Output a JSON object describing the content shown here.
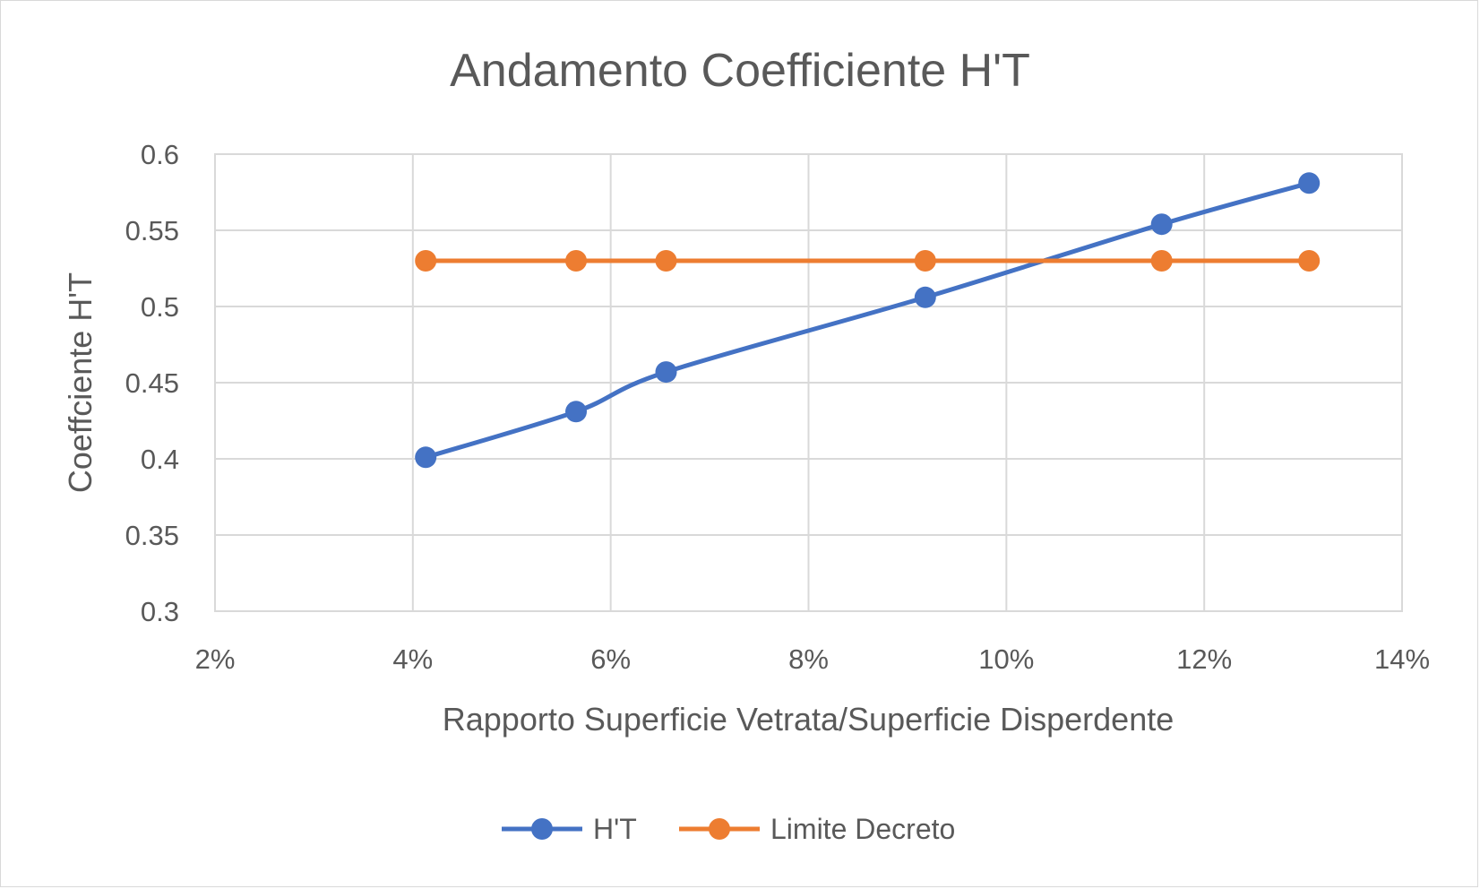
{
  "chart_data": {
    "type": "scatter",
    "title": "Andamento Coefficiente H'T",
    "xlabel": "Rapporto Superficie Vetrata/Superficie Disperdente",
    "ylabel": "Coeffciente H'T",
    "xlim": [
      0.02,
      0.14
    ],
    "ylim": [
      0.3,
      0.6
    ],
    "x_ticks": [
      0.02,
      0.04,
      0.06,
      0.08,
      0.1,
      0.12,
      0.14
    ],
    "x_tick_labels": [
      "2%",
      "4%",
      "6%",
      "8%",
      "10%",
      "12%",
      "14%"
    ],
    "y_ticks": [
      0.3,
      0.35,
      0.4,
      0.45,
      0.5,
      0.55,
      0.6
    ],
    "y_tick_labels": [
      "0.3",
      "0.35",
      "0.4",
      "0.45",
      "0.5",
      "0.55",
      "0.6"
    ],
    "grid": true,
    "legend_position": "bottom",
    "series": [
      {
        "name": "H'T",
        "color": "#4472C4",
        "smooth": true,
        "x": [
          0.0413,
          0.0565,
          0.0656,
          0.0918,
          0.1157,
          0.1306
        ],
        "y": [
          0.401,
          0.431,
          0.457,
          0.506,
          0.554,
          0.581
        ]
      },
      {
        "name": "Limite Decreto",
        "color": "#ED7D31",
        "smooth": false,
        "x": [
          0.0413,
          0.0565,
          0.0656,
          0.0918,
          0.1157,
          0.1306
        ],
        "y": [
          0.53,
          0.53,
          0.53,
          0.53,
          0.53,
          0.53
        ]
      }
    ]
  }
}
